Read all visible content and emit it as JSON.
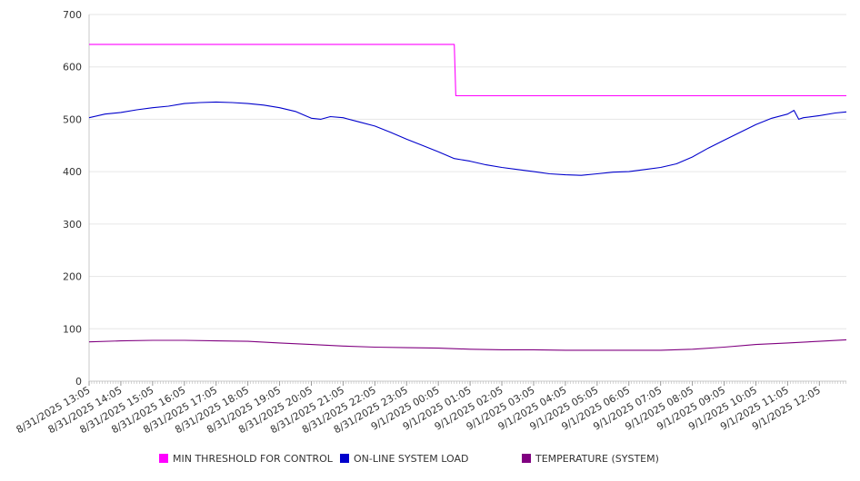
{
  "chart_data": {
    "type": "line",
    "title": "",
    "xlabel": "",
    "ylabel": "",
    "ylim": [
      0,
      700
    ],
    "yticks": [
      0,
      100,
      200,
      300,
      400,
      500,
      600,
      700
    ],
    "grid": true,
    "legend_position": "bottom",
    "categories": [
      "8/31/2025 13:05",
      "8/31/2025 14:05",
      "8/31/2025 15:05",
      "8/31/2025 16:05",
      "8/31/2025 17:05",
      "8/31/2025 18:05",
      "8/31/2025 19:05",
      "8/31/2025 20:05",
      "8/31/2025 21:05",
      "8/31/2025 22:05",
      "8/31/2025 23:05",
      "9/1/2025 00:05",
      "9/1/2025 01:05",
      "9/1/2025 02:05",
      "9/1/2025 03:05",
      "9/1/2025 04:05",
      "9/1/2025 05:05",
      "9/1/2025 06:05",
      "9/1/2025 07:05",
      "9/1/2025 08:05",
      "9/1/2025 09:05",
      "9/1/2025 10:05",
      "9/1/2025 11:05",
      "9/1/2025 12:05"
    ],
    "series": [
      {
        "name": "MIN THRESHOLD FOR CONTROL",
        "color": "#ff00ff",
        "points": [
          [
            0,
            643
          ],
          [
            11.5,
            643
          ],
          [
            11.55,
            545
          ],
          [
            23.85,
            545
          ]
        ]
      },
      {
        "name": "ON-LINE SYSTEM LOAD",
        "color": "#0000cc",
        "points": [
          [
            0,
            503
          ],
          [
            0.5,
            510
          ],
          [
            1,
            513
          ],
          [
            1.5,
            518
          ],
          [
            2,
            522
          ],
          [
            2.5,
            525
          ],
          [
            3,
            530
          ],
          [
            3.5,
            532
          ],
          [
            4,
            533
          ],
          [
            4.5,
            532
          ],
          [
            5,
            530
          ],
          [
            5.5,
            527
          ],
          [
            6,
            522
          ],
          [
            6.5,
            515
          ],
          [
            7,
            502
          ],
          [
            7.3,
            500
          ],
          [
            7.6,
            505
          ],
          [
            8,
            503
          ],
          [
            8.5,
            495
          ],
          [
            9,
            487
          ],
          [
            9.5,
            475
          ],
          [
            10,
            462
          ],
          [
            10.5,
            450
          ],
          [
            11,
            438
          ],
          [
            11.5,
            425
          ],
          [
            12,
            420
          ],
          [
            12.5,
            413
          ],
          [
            13,
            408
          ],
          [
            13.5,
            404
          ],
          [
            14,
            400
          ],
          [
            14.5,
            396
          ],
          [
            15,
            394
          ],
          [
            15.5,
            393
          ],
          [
            16,
            396
          ],
          [
            16.5,
            399
          ],
          [
            17,
            400
          ],
          [
            17.5,
            404
          ],
          [
            18,
            408
          ],
          [
            18.5,
            415
          ],
          [
            19,
            428
          ],
          [
            19.5,
            445
          ],
          [
            20,
            460
          ],
          [
            20.5,
            475
          ],
          [
            21,
            490
          ],
          [
            21.5,
            502
          ],
          [
            22,
            510
          ],
          [
            22.2,
            517
          ],
          [
            22.35,
            500
          ],
          [
            22.5,
            503
          ],
          [
            23,
            507
          ],
          [
            23.5,
            512
          ],
          [
            23.85,
            514
          ]
        ]
      },
      {
        "name": "TEMPERATURE (SYSTEM)",
        "color": "#800080",
        "points": [
          [
            0,
            75
          ],
          [
            1,
            77
          ],
          [
            2,
            78
          ],
          [
            3,
            78
          ],
          [
            4,
            77
          ],
          [
            5,
            76
          ],
          [
            6,
            73
          ],
          [
            7,
            70
          ],
          [
            8,
            67
          ],
          [
            9,
            65
          ],
          [
            10,
            64
          ],
          [
            11,
            63
          ],
          [
            12,
            61
          ],
          [
            13,
            60
          ],
          [
            14,
            60
          ],
          [
            15,
            59
          ],
          [
            16,
            59
          ],
          [
            17,
            59
          ],
          [
            18,
            59
          ],
          [
            19,
            61
          ],
          [
            20,
            65
          ],
          [
            21,
            70
          ],
          [
            22,
            73
          ],
          [
            23,
            76
          ],
          [
            23.85,
            79
          ]
        ]
      }
    ]
  }
}
